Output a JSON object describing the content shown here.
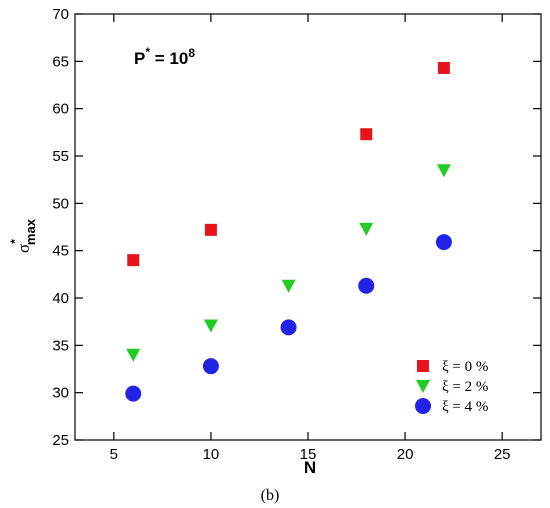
{
  "chart_data": {
    "type": "scatter",
    "title": "",
    "annotation": {
      "base": "P",
      "sup": "*",
      "eq": " = 10",
      "exp": "8"
    },
    "xlabel": "N",
    "ylabel": {
      "base": "σ",
      "sup": "*",
      "sub": "max"
    },
    "caption": "(b)",
    "xlim": [
      3,
      27
    ],
    "ylim": [
      25,
      70
    ],
    "xticks": [
      5,
      10,
      15,
      20,
      25
    ],
    "yticks": [
      25,
      30,
      35,
      40,
      45,
      50,
      55,
      60,
      65,
      70
    ],
    "grid": false,
    "legend_position": "bottom-right",
    "series": [
      {
        "name": "ξ = 0 %",
        "marker": "square",
        "color": "#e8141c",
        "x": [
          6,
          10,
          18,
          22
        ],
        "y": [
          44.0,
          47.2,
          57.3,
          64.3
        ]
      },
      {
        "name": "ξ = 2 %",
        "marker": "triangle-down",
        "color": "#22cc22",
        "x": [
          6,
          10,
          14,
          18,
          22
        ],
        "y": [
          34.0,
          37.1,
          41.3,
          47.3,
          53.5
        ]
      },
      {
        "name": "ξ = 4 %",
        "marker": "circle",
        "color": "#2323e6",
        "x": [
          6,
          10,
          14,
          18,
          22
        ],
        "y": [
          29.9,
          32.8,
          36.9,
          41.3,
          45.9
        ]
      }
    ]
  }
}
